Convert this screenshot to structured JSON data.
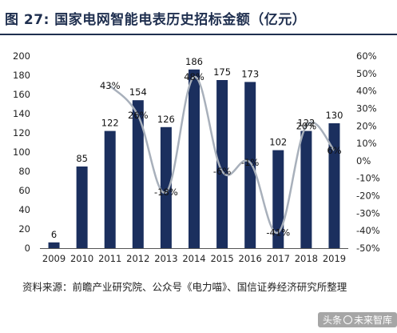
{
  "header": {
    "title": "图 27:  国家电网智能电表历史招标金额（亿元）"
  },
  "chart_data": {
    "type": "bar",
    "categories": [
      "2009",
      "2010",
      "2011",
      "2012",
      "2013",
      "2014",
      "2015",
      "2016",
      "2017",
      "2018",
      "2019"
    ],
    "series": [
      {
        "values": [
          6,
          85,
          122,
          154,
          126,
          186,
          175,
          173,
          102,
          122,
          130
        ],
        "color": "#1b2f5e",
        "axis": "left"
      },
      {
        "type": "line",
        "values_pct": [
          null,
          null,
          43,
          26,
          -18,
          48,
          -6,
          -1,
          -41,
          20,
          6
        ],
        "labels": [
          "",
          "",
          "43%",
          "26%",
          "-18%",
          "48%",
          "-6%",
          "-1%",
          "-41%",
          "20%",
          "6%"
        ],
        "color": "#a8b0bb",
        "axis": "right"
      }
    ],
    "bar_labels": [
      "6",
      "85",
      "122",
      "154",
      "126",
      "186",
      "175",
      "173",
      "102",
      "122",
      "130"
    ],
    "left_axis": {
      "ylim": [
        0,
        200
      ],
      "ticks": [
        "0",
        "20",
        "40",
        "60",
        "80",
        "100",
        "120",
        "140",
        "160",
        "180",
        "200"
      ]
    },
    "right_axis": {
      "ylim": [
        -50,
        60
      ],
      "ticks": [
        "-50%",
        "-40%",
        "-30%",
        "-20%",
        "-10%",
        "0%",
        "10%",
        "20%",
        "30%",
        "40%",
        "50%",
        "60%"
      ]
    },
    "grid": false,
    "legend": "none"
  },
  "source": {
    "text": "资料来源：前瞻产业研究院、公众号《电力喵》、国信证券经济研究所整理"
  },
  "watermark": {
    "text_left": "头条",
    "text_right": "未来智库"
  }
}
